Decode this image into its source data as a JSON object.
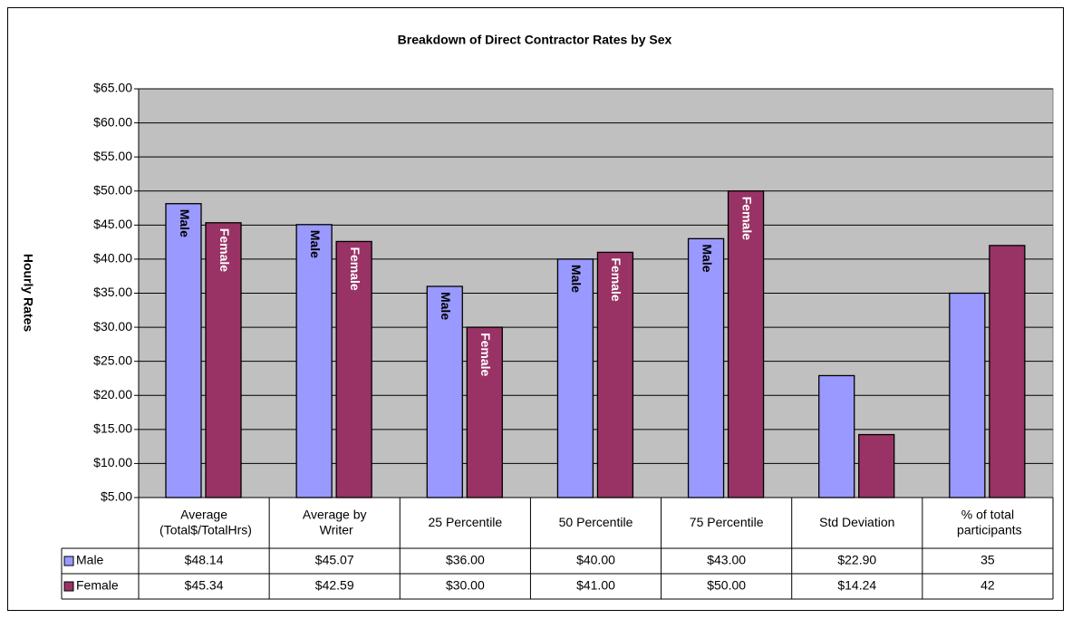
{
  "chart_data": {
    "type": "bar",
    "title": "Breakdown of Direct Contractor Rates by Sex",
    "y_label": "Hourly Rates",
    "categories": [
      "Average (Total$/TotalHrs)",
      "Average by Writer",
      "25 Percentile",
      "50 Percentile",
      "75 Percentile",
      "Std Deviation",
      "% of total participants"
    ],
    "series": [
      {
        "name": "Male",
        "color": "#9999ff",
        "values": [
          48.14,
          45.07,
          36,
          40,
          43,
          22.9,
          35
        ],
        "value_labels": [
          "$48.14",
          "$45.07",
          "$36.00",
          "$40.00",
          "$43.00",
          "$22.90",
          "35"
        ],
        "show_labels": [
          true,
          true,
          true,
          true,
          true,
          false,
          false
        ]
      },
      {
        "name": "Female",
        "color": "#993366",
        "values": [
          45.34,
          42.59,
          30,
          41,
          50,
          14.24,
          42
        ],
        "value_labels": [
          "$45.34",
          "$42.59",
          "$30.00",
          "$41.00",
          "$50.00",
          "$14.24",
          "42"
        ],
        "show_labels": [
          true,
          true,
          true,
          true,
          true,
          false,
          false
        ]
      }
    ],
    "ylim": [
      5,
      65
    ],
    "yticks": [
      {
        "value": 5,
        "label": "$5.00"
      },
      {
        "value": 10,
        "label": "$10.00"
      },
      {
        "value": 15,
        "label": "$15.00"
      },
      {
        "value": 20,
        "label": "$20.00"
      },
      {
        "value": 25,
        "label": "$25.00"
      },
      {
        "value": 30,
        "label": "$30.00"
      },
      {
        "value": 35,
        "label": "$35.00"
      },
      {
        "value": 40,
        "label": "$40.00"
      },
      {
        "value": 45,
        "label": "$45.00"
      },
      {
        "value": 50,
        "label": "$50.00"
      },
      {
        "value": 55,
        "label": "$55.00"
      },
      {
        "value": 60,
        "label": "$60.00"
      },
      {
        "value": 65,
        "label": "$65.00"
      }
    ],
    "grid": true,
    "plot_background": "#c0c0c0",
    "data_table": true
  }
}
